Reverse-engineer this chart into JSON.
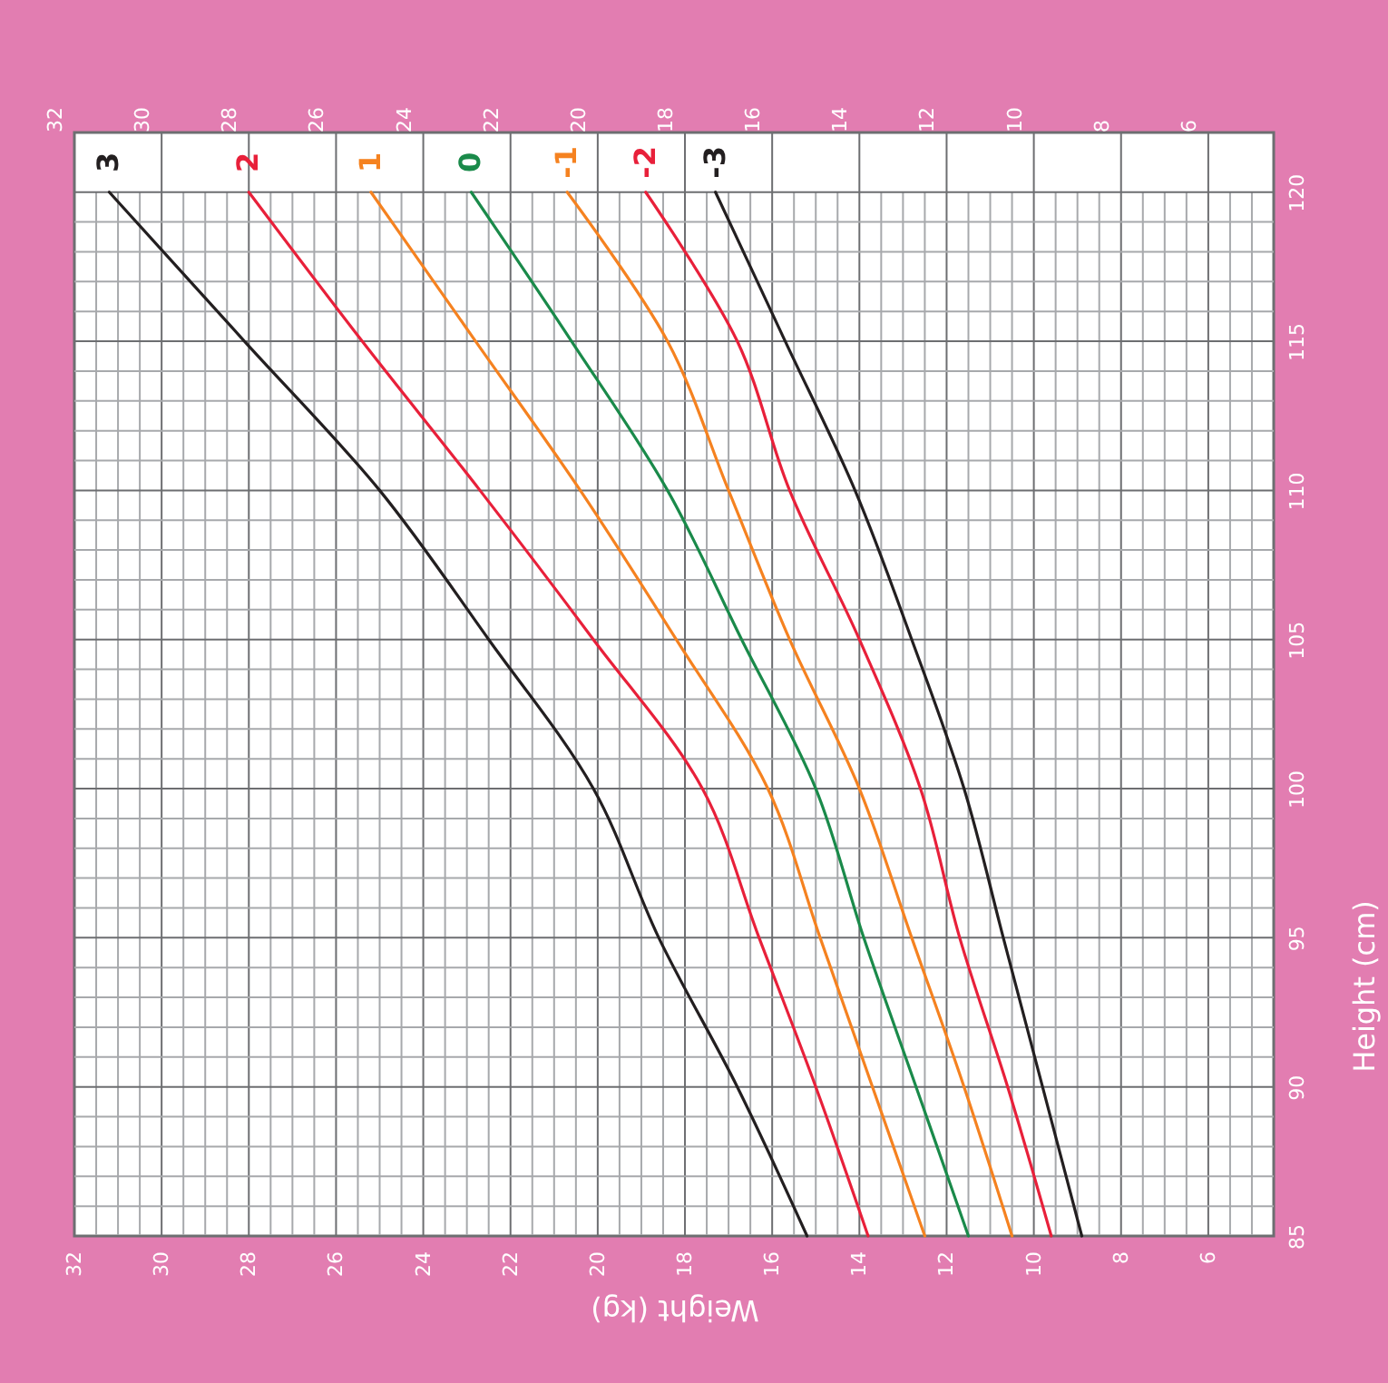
{
  "chart_data": {
    "type": "line",
    "xlabel": "Weight (kg)",
    "ylabel": "Height (cm)",
    "series": [
      {
        "name": "3",
        "color": "#231f20",
        "x": [
          15.2,
          16.8,
          18.6,
          20.1,
          22.5,
          25.0,
          28.1,
          31.2
        ],
        "values": [
          85,
          90,
          95,
          100,
          105,
          110,
          115,
          120
        ]
      },
      {
        "name": "2",
        "color": "#e8203a",
        "x": [
          13.8,
          15.0,
          16.3,
          17.6,
          20.1,
          22.7,
          25.4,
          28.0
        ],
        "values": [
          85,
          90,
          95,
          100,
          105,
          110,
          115,
          120
        ]
      },
      {
        "name": "1",
        "color": "#f58220",
        "x": [
          12.5,
          13.7,
          14.9,
          16.1,
          18.2,
          20.4,
          22.8,
          25.2
        ],
        "values": [
          85,
          90,
          95,
          100,
          105,
          110,
          115,
          120
        ]
      },
      {
        "name": "0",
        "color": "#1a8a4a",
        "x": [
          11.5,
          12.7,
          13.9,
          15.0,
          16.7,
          18.4,
          20.6,
          22.9
        ],
        "values": [
          85,
          90,
          95,
          100,
          105,
          110,
          115,
          120
        ]
      },
      {
        "name": "-1",
        "color": "#f58220",
        "x": [
          10.5,
          11.6,
          12.8,
          14.0,
          15.6,
          17.0,
          18.4,
          20.7
        ],
        "values": [
          85,
          90,
          95,
          100,
          105,
          110,
          115,
          120
        ]
      },
      {
        "name": "-2",
        "color": "#e8203a",
        "x": [
          9.6,
          10.6,
          11.7,
          12.6,
          14.0,
          15.6,
          16.8,
          18.9
        ],
        "values": [
          85,
          90,
          95,
          100,
          105,
          110,
          115,
          120
        ]
      },
      {
        "name": "-3",
        "color": "#231f20",
        "x": [
          8.9,
          9.8,
          10.7,
          11.6,
          12.8,
          14.1,
          15.7,
          17.3
        ],
        "values": [
          85,
          90,
          95,
          100,
          105,
          110,
          115,
          120
        ]
      }
    ],
    "xlim": [
      32,
      4.5
    ],
    "x2lim": [
      32,
      4.5
    ],
    "xticks": [
      32,
      {
        "value": 31.5,
        "label": null
      },
      {
        "value": 31,
        "label": null
      },
      {
        "value": 30.5,
        "label": null
      },
      30,
      {
        "value": 29.5,
        "label": null
      },
      {
        "value": 29,
        "label": null
      },
      {
        "value": 28.5,
        "label": null
      },
      28,
      {
        "value": 27.5,
        "label": null
      },
      {
        "value": 27,
        "label": null
      },
      {
        "value": 26.5,
        "label": null
      },
      26,
      {
        "value": 25.5,
        "label": null
      },
      {
        "value": 25,
        "label": null
      },
      {
        "value": 24.5,
        "label": null
      },
      24,
      {
        "value": 23.5,
        "label": null
      },
      {
        "value": 23,
        "label": null
      },
      {
        "value": 22.5,
        "label": null
      },
      22,
      {
        "value": 21.5,
        "label": null
      },
      {
        "value": 21,
        "label": null
      },
      {
        "value": 20.5,
        "label": null
      },
      20,
      {
        "value": 19.5,
        "label": null
      },
      {
        "value": 19,
        "label": null
      },
      {
        "value": 18.5,
        "label": null
      },
      18,
      {
        "value": 17.5,
        "label": null
      },
      {
        "value": 17,
        "label": null
      },
      {
        "value": 16.5,
        "label": null
      },
      16,
      {
        "value": 15.5,
        "label": null
      },
      {
        "value": 15,
        "label": null
      },
      {
        "value": 14.5,
        "label": null
      },
      14,
      {
        "value": 13.5,
        "label": null
      },
      {
        "value": 13,
        "label": null
      },
      {
        "value": 12.5,
        "label": null
      },
      12,
      {
        "value": 11.5,
        "label": null
      },
      {
        "value": 11,
        "label": null
      },
      {
        "value": 10.5,
        "label": null
      },
      10,
      {
        "value": 9.5,
        "label": null
      },
      {
        "value": 9,
        "label": null
      },
      {
        "value": 8.5,
        "label": null
      },
      8,
      {
        "value": 7.5,
        "label": null
      },
      {
        "value": 7,
        "label": null
      },
      {
        "value": 6.5,
        "label": null
      },
      6,
      {
        "value": 5.5,
        "label": null
      },
      {
        "value": 5,
        "label": null
      }
    ],
    "x2ticks": [
      32,
      30,
      28,
      26,
      24,
      22,
      20,
      18,
      16,
      14,
      12,
      10,
      8,
      6
    ],
    "ylim": [
      85,
      122
    ],
    "yticks": [
      85,
      {
        "value": 86,
        "label": null
      },
      {
        "value": 87,
        "label": null
      },
      {
        "value": 88,
        "label": null
      },
      {
        "value": 89,
        "label": null
      },
      90,
      {
        "value": 91,
        "label": null
      },
      {
        "value": 92,
        "label": null
      },
      {
        "value": 93,
        "label": null
      },
      {
        "value": 94,
        "label": null
      },
      95,
      {
        "value": 96,
        "label": null
      },
      {
        "value": 97,
        "label": null
      },
      {
        "value": 98,
        "label": null
      },
      {
        "value": 99,
        "label": null
      },
      100,
      {
        "value": 101,
        "label": null
      },
      {
        "value": 102,
        "label": null
      },
      {
        "value": 103,
        "label": null
      },
      {
        "value": 104,
        "label": null
      },
      105,
      {
        "value": 106,
        "label": null
      },
      {
        "value": 107,
        "label": null
      },
      {
        "value": 108,
        "label": null
      },
      {
        "value": 109,
        "label": null
      },
      110,
      {
        "value": 111,
        "label": null
      },
      {
        "value": 112,
        "label": null
      },
      {
        "value": 113,
        "label": null
      },
      {
        "value": 114,
        "label": null
      },
      115,
      {
        "value": 116,
        "label": null
      },
      {
        "value": 117,
        "label": null
      },
      {
        "value": 118,
        "label": null
      },
      {
        "value": 119,
        "label": null
      },
      120
    ],
    "grid": true,
    "line_style": "solid"
  }
}
